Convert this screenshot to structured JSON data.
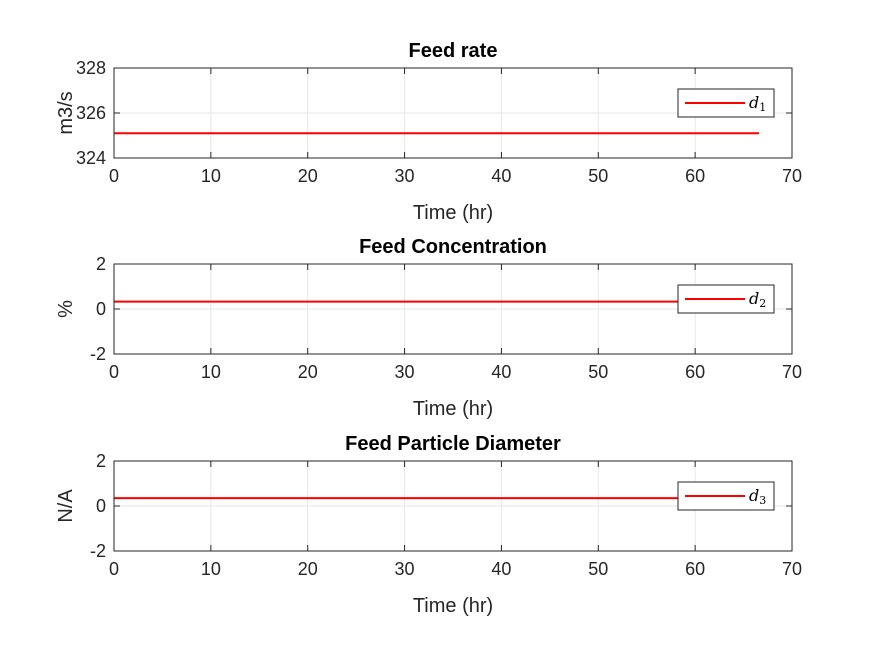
{
  "chart_data": [
    {
      "type": "line",
      "title": "Feed rate",
      "xlabel": "Time (hr)",
      "ylabel": "m3/s",
      "xlim": [
        0,
        70
      ],
      "ylim": [
        324,
        328
      ],
      "xticks": [
        0,
        10,
        20,
        30,
        40,
        50,
        60,
        70
      ],
      "yticks": [
        324,
        326,
        328
      ],
      "grid": true,
      "legend_position": "top-right",
      "series": [
        {
          "name": "d",
          "name_sub": "1",
          "color": "#ff0000",
          "x": [
            0,
            66.6
          ],
          "y": [
            325.1,
            325.1
          ]
        }
      ]
    },
    {
      "type": "line",
      "title": "Feed Concentration",
      "xlabel": "Time (hr)",
      "ylabel": "%",
      "xlim": [
        0,
        70
      ],
      "ylim": [
        -2,
        2
      ],
      "xticks": [
        0,
        10,
        20,
        30,
        40,
        50,
        60,
        70
      ],
      "yticks": [
        -2,
        0,
        2
      ],
      "grid": true,
      "legend_position": "top-right",
      "series": [
        {
          "name": "d",
          "name_sub": "2",
          "color": "#ff0000",
          "x": [
            0,
            66.6
          ],
          "y": [
            0.33,
            0.33
          ]
        }
      ]
    },
    {
      "type": "line",
      "title": "Feed Particle Diameter",
      "xlabel": "Time (hr)",
      "ylabel": "N/A",
      "xlim": [
        0,
        70
      ],
      "ylim": [
        -2,
        2
      ],
      "xticks": [
        0,
        10,
        20,
        30,
        40,
        50,
        60,
        70
      ],
      "yticks": [
        -2,
        0,
        2
      ],
      "grid": true,
      "legend_position": "top-right",
      "series": [
        {
          "name": "d",
          "name_sub": "3",
          "color": "#ff0000",
          "x": [
            0,
            66.6
          ],
          "y": [
            0.35,
            0.35
          ]
        }
      ]
    }
  ]
}
